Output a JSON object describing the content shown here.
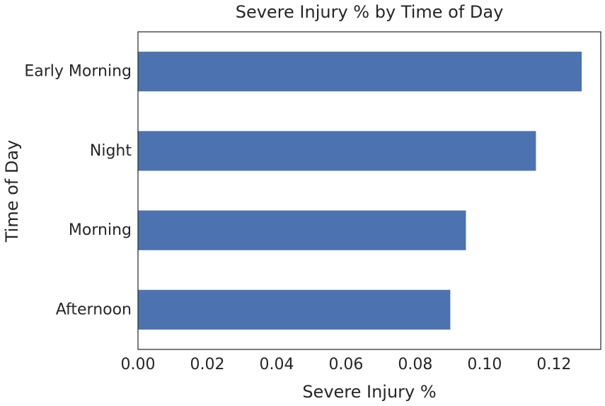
{
  "chart_data": {
    "type": "bar",
    "orientation": "horizontal",
    "title": "Severe Injury % by Time of Day",
    "xlabel": "Severe Injury %",
    "ylabel": "Time of Day",
    "categories": [
      "Early Morning",
      "Night",
      "Morning",
      "Afternoon"
    ],
    "values": [
      0.128,
      0.1148,
      0.0946,
      0.0901
    ],
    "xlim": [
      0,
      0.1335
    ],
    "xticks": [
      0,
      0.02,
      0.04,
      0.06,
      0.08,
      0.1,
      0.12
    ],
    "xtick_labels": [
      "0.00",
      "0.02",
      "0.04",
      "0.06",
      "0.08",
      "0.10",
      "0.12"
    ],
    "bar_color": "#4c72b0",
    "grid": false,
    "legend": "none"
  }
}
